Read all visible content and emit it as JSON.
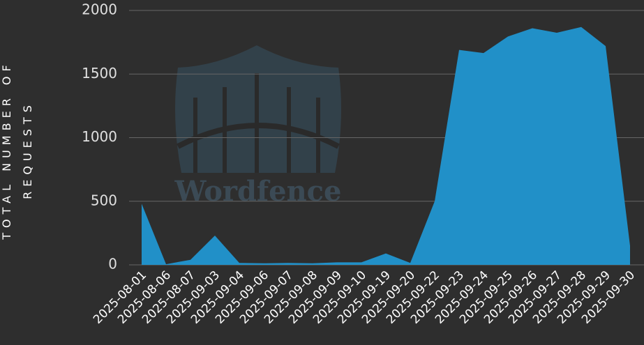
{
  "chart_data": {
    "type": "area",
    "y_label": "TOTAL NUMBER OF REQUESTS",
    "watermark": "Wordfence",
    "categories": [
      "2025-08-01",
      "2025-08-06",
      "2025-08-07",
      "2025-09-03",
      "2025-09-04",
      "2025-09-06",
      "2025-09-07",
      "2025-09-08",
      "2025-09-09",
      "2025-09-10",
      "2025-09-19",
      "2025-09-20",
      "2025-09-22",
      "2025-09-23",
      "2025-09-24",
      "2025-09-25",
      "2025-09-26",
      "2025-09-27",
      "2025-09-28",
      "2025-09-29",
      "2025-09-30"
    ],
    "values": [
      480,
      5,
      40,
      230,
      15,
      12,
      15,
      12,
      20,
      20,
      90,
      15,
      500,
      1690,
      1665,
      1795,
      1860,
      1825,
      1870,
      1720,
      150
    ],
    "color": "#2190c8",
    "ylim": [
      0,
      2000
    ],
    "yticks": [
      0,
      500,
      1000,
      1500,
      2000
    ],
    "grid": true
  }
}
